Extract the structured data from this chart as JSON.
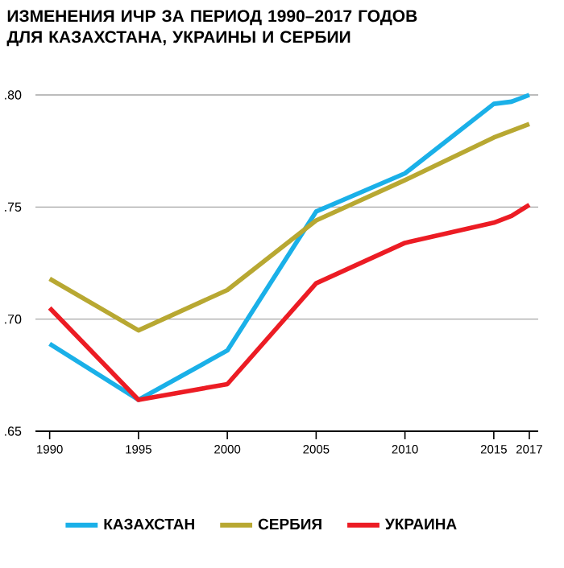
{
  "chart_data": {
    "type": "line",
    "title": "ИЗМЕНЕНИЯ ИЧР ЗА ПЕРИОД 1990–2017 ГОДОВ ДЛЯ КАЗАХСТАНА, УКРАИНЫ И СЕРБИИ",
    "x": [
      1990,
      1995,
      2000,
      2005,
      2010,
      2015,
      2016,
      2017
    ],
    "series": [
      {
        "name": "КАЗАХСТАН",
        "color": "#1ab0e8",
        "values": [
          0.689,
          0.664,
          0.686,
          0.748,
          0.765,
          0.796,
          0.797,
          0.8
        ]
      },
      {
        "name": "СЕРБИЯ",
        "color": "#b8a832",
        "values": [
          0.718,
          0.695,
          0.713,
          0.744,
          0.762,
          0.781,
          0.784,
          0.787
        ]
      },
      {
        "name": "УКРАИНА",
        "color": "#ec1c24",
        "values": [
          0.705,
          0.664,
          0.671,
          0.716,
          0.734,
          0.743,
          0.746,
          0.751
        ]
      }
    ],
    "xlim": [
      1989.2,
      2017.5
    ],
    "xticks": [
      1990,
      1995,
      2000,
      2005,
      2010,
      2015,
      2017
    ],
    "ylim": [
      0.65,
      0.8
    ],
    "yticks": [
      {
        "value": 0.65,
        "label": ".65"
      },
      {
        "value": 0.7,
        "label": ".70"
      },
      {
        "value": 0.75,
        "label": ".75"
      },
      {
        "value": 0.8,
        "label": ".80"
      }
    ],
    "grid": "y",
    "legend": "bottom",
    "marker": "none",
    "line_style": "solid"
  }
}
